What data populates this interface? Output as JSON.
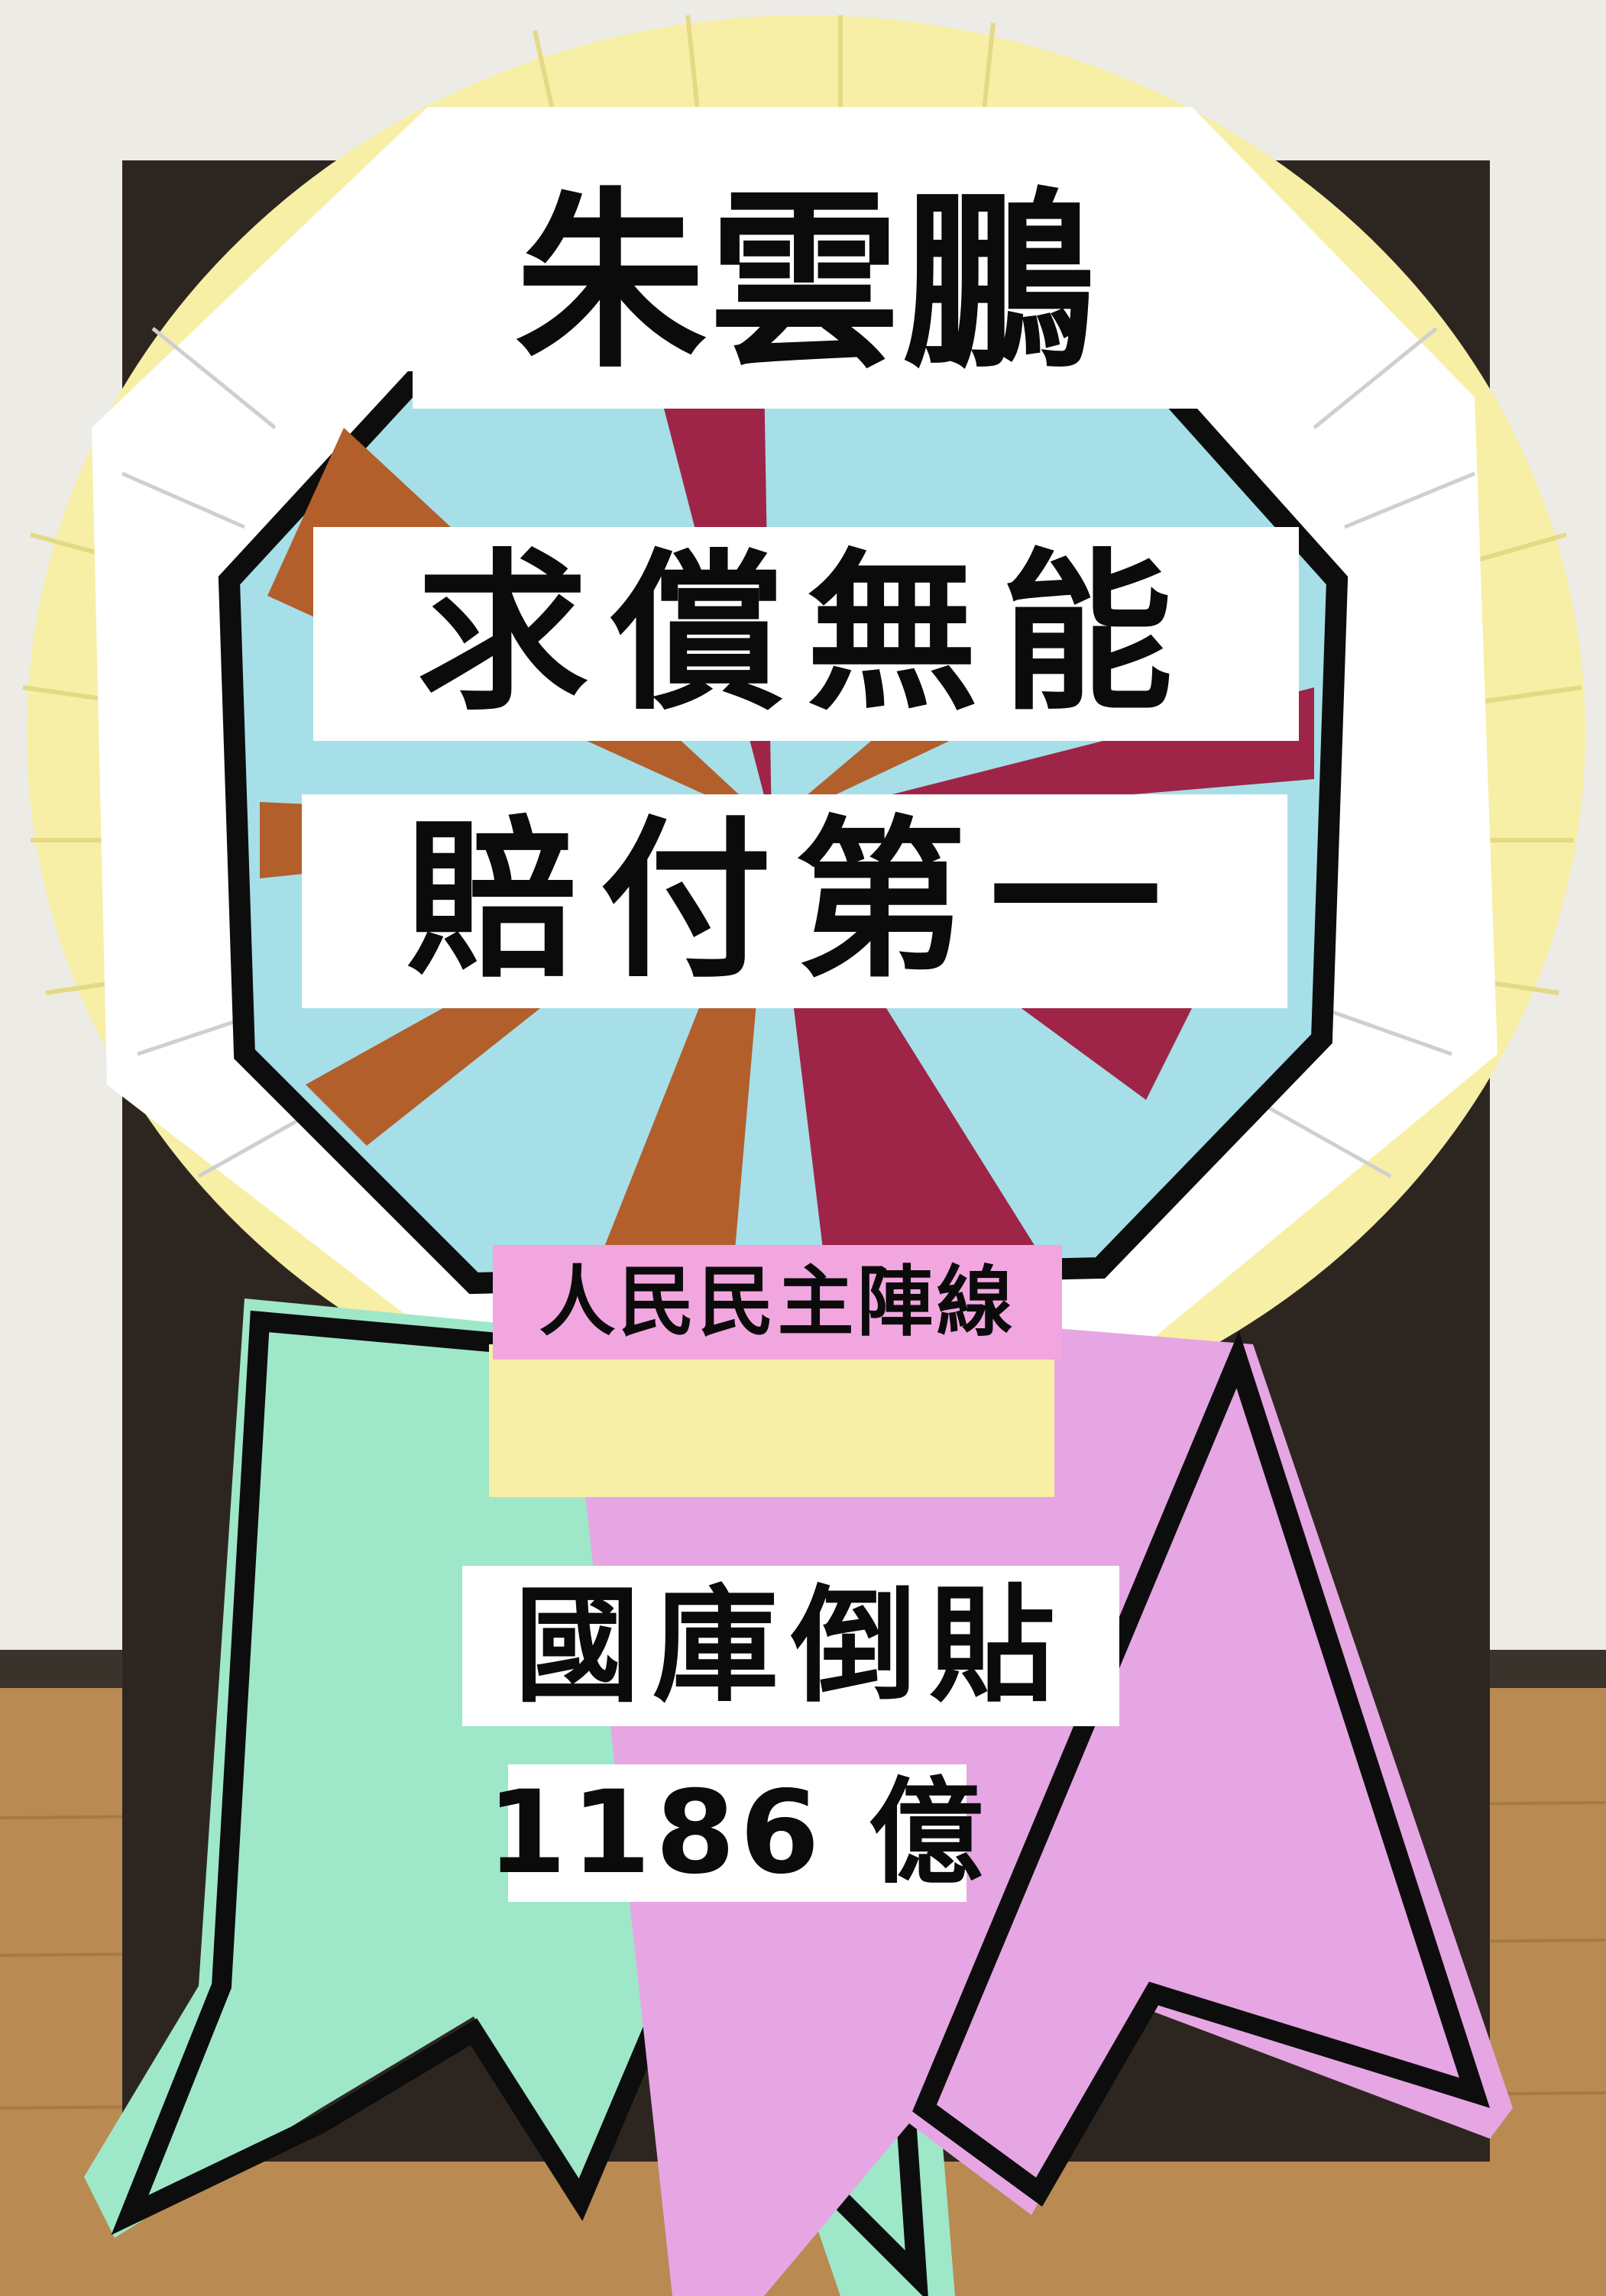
{
  "poster": {
    "title": "朱雲鵬",
    "slogan_line1": "求償無能",
    "slogan_line2": "賠付第一",
    "organization": "人民民主陣線",
    "subsidy_line1": "國庫倒貼",
    "subsidy_line2": "1186 億"
  },
  "colors": {
    "wall": "#ecebe6",
    "floor": "#b98a52",
    "board": "#2d2620",
    "fringe_yellow": "#f7efa6",
    "fringe_white": "#ffffff",
    "rosette_blue": "#a6dfe8",
    "ray_brown": "#b25f2c",
    "ray_maroon": "#9e2547",
    "ribbon_green": "#9fe7c9",
    "ribbon_pink": "#e6a6e3",
    "banner_pink": "#f2a6df",
    "outline_black": "#0d0d0d"
  }
}
